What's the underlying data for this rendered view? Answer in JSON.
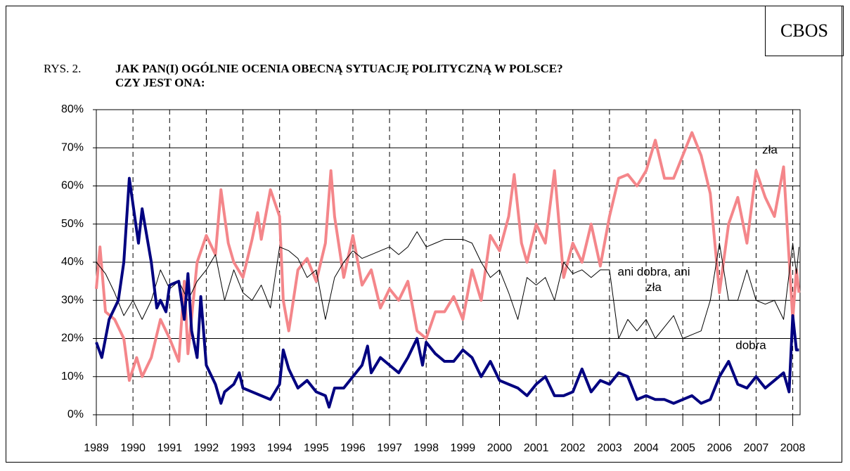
{
  "chart_data": {
    "type": "line",
    "source": "CBOS",
    "label": "RYS. 2.",
    "title": [
      "JAK PAN(I) OGÓLNIE OCENIA OBECNĄ SYTUACJĘ POLITYCZNĄ W POLSCE?",
      "CZY JEST ONA:"
    ],
    "xlim": [
      1989,
      2008.2
    ],
    "xticks": [
      1989,
      1990,
      1991,
      1992,
      1993,
      1994,
      1995,
      1996,
      1997,
      1998,
      1999,
      2000,
      2001,
      2002,
      2003,
      2004,
      2005,
      2006,
      2007,
      2008
    ],
    "ylim": [
      0,
      80
    ],
    "yticks": [
      {
        "value": 0,
        "label": "0%"
      },
      {
        "value": 10,
        "label": "10%"
      },
      {
        "value": 20,
        "label": "20%"
      },
      {
        "value": 30,
        "label": "30%"
      },
      {
        "value": 40,
        "label": "40%"
      },
      {
        "value": 50,
        "label": "50%"
      },
      {
        "value": 60,
        "label": "60%"
      },
      {
        "value": 70,
        "label": "70%"
      },
      {
        "value": 80,
        "label": "80%"
      }
    ],
    "grid": true,
    "series": [
      {
        "name": "zła",
        "color": "#f4868a",
        "width": 4,
        "x": [
          1989,
          1989.1,
          1989.25,
          1989.5,
          1989.75,
          1989.9,
          1990.1,
          1990.25,
          1990.5,
          1990.75,
          1991,
          1991.25,
          1991.4,
          1991.5,
          1991.75,
          1992,
          1992.25,
          1992.4,
          1992.6,
          1992.75,
          1993,
          1993.25,
          1993.4,
          1993.5,
          1993.75,
          1994,
          1994.1,
          1994.25,
          1994.5,
          1994.75,
          1995,
          1995.25,
          1995.4,
          1995.5,
          1995.75,
          1996,
          1996.25,
          1996.5,
          1996.75,
          1997,
          1997.25,
          1997.5,
          1997.75,
          1998,
          1998.25,
          1998.5,
          1998.75,
          1999,
          1999.25,
          1999.5,
          1999.75,
          2000,
          2000.25,
          2000.4,
          2000.6,
          2000.75,
          2001,
          2001.25,
          2001.5,
          2001.75,
          2002,
          2002.25,
          2002.5,
          2002.75,
          2003,
          2003.25,
          2003.5,
          2003.75,
          2004,
          2004.25,
          2004.5,
          2004.75,
          2005,
          2005.25,
          2005.5,
          2005.75,
          2006,
          2006.25,
          2006.5,
          2006.75,
          2007,
          2007.25,
          2007.5,
          2007.75,
          2008,
          2008.1,
          2008.17
        ],
        "values": [
          33,
          44,
          27,
          25,
          20,
          9,
          15,
          10,
          15,
          25,
          20,
          14,
          35,
          16,
          40,
          47,
          42,
          59,
          45,
          40,
          36,
          46,
          53,
          46,
          59,
          52,
          30,
          22,
          38,
          41,
          35,
          45,
          64,
          52,
          36,
          47,
          34,
          38,
          28,
          33,
          30,
          35,
          22,
          20,
          27,
          27,
          31,
          25,
          38,
          30,
          47,
          43,
          52,
          63,
          45,
          40,
          50,
          45,
          64,
          36,
          45,
          40,
          50,
          39,
          52,
          62,
          63,
          60,
          64,
          72,
          62,
          62,
          68,
          74,
          68,
          58,
          32,
          50,
          57,
          45,
          64,
          57,
          52,
          65,
          25,
          38,
          32
        ]
      },
      {
        "name": "ani dobra, ani zła",
        "color": "#000000",
        "width": 1,
        "x": [
          1989,
          1989.25,
          1989.5,
          1989.75,
          1990,
          1990.25,
          1990.5,
          1990.75,
          1991,
          1991.25,
          1991.5,
          1991.75,
          1992,
          1992.25,
          1992.5,
          1992.75,
          1993,
          1993.25,
          1993.5,
          1993.75,
          1994,
          1994.25,
          1994.5,
          1994.75,
          1995,
          1995.25,
          1995.5,
          1995.75,
          1996,
          1996.25,
          1996.5,
          1996.75,
          1997,
          1997.25,
          1997.5,
          1997.75,
          1998,
          1998.25,
          1998.5,
          1998.75,
          1999,
          1999.25,
          1999.5,
          1999.75,
          2000,
          2000.25,
          2000.5,
          2000.75,
          2001,
          2001.25,
          2001.5,
          2001.75,
          2002,
          2002.25,
          2002.5,
          2002.75,
          2003,
          2003.25,
          2003.5,
          2003.75,
          2004,
          2004.25,
          2004.5,
          2004.75,
          2005,
          2005.25,
          2005.5,
          2005.75,
          2006,
          2006.25,
          2006.5,
          2006.75,
          2007,
          2007.25,
          2007.5,
          2007.75,
          2008,
          2008.1,
          2008.17
        ],
        "values": [
          40,
          37,
          32,
          26,
          30,
          25,
          30,
          38,
          33,
          35,
          30,
          35,
          38,
          42,
          30,
          38,
          32,
          30,
          34,
          28,
          44,
          43,
          41,
          36,
          38,
          25,
          36,
          40,
          43,
          41,
          42,
          43,
          44,
          42,
          44,
          48,
          44,
          45,
          46,
          46,
          46,
          45,
          40,
          36,
          38,
          32,
          25,
          36,
          34,
          36,
          30,
          40,
          37,
          38,
          36,
          38,
          38,
          20,
          25,
          22,
          25,
          20,
          23,
          26,
          20,
          21,
          22,
          30,
          45,
          30,
          30,
          38,
          30,
          29,
          30,
          25,
          45,
          37,
          44
        ]
      },
      {
        "name": "dobra",
        "color": "#000080",
        "width": 4,
        "x": [
          1989,
          1989.15,
          1989.35,
          1989.6,
          1989.75,
          1989.9,
          1990.15,
          1990.25,
          1990.5,
          1990.65,
          1990.75,
          1990.9,
          1991,
          1991.25,
          1991.4,
          1991.5,
          1991.6,
          1991.75,
          1991.85,
          1992,
          1992.25,
          1992.4,
          1992.5,
          1992.75,
          1992.9,
          1993,
          1993.25,
          1993.5,
          1993.75,
          1994,
          1994.1,
          1994.25,
          1994.5,
          1994.75,
          1995,
          1995.25,
          1995.35,
          1995.5,
          1995.75,
          1996,
          1996.25,
          1996.4,
          1996.5,
          1996.75,
          1997,
          1997.25,
          1997.5,
          1997.75,
          1997.9,
          1998,
          1998.25,
          1998.5,
          1998.75,
          1999,
          1999.25,
          1999.5,
          1999.75,
          2000,
          2000.25,
          2000.5,
          2000.75,
          2001,
          2001.25,
          2001.5,
          2001.75,
          2002,
          2002.25,
          2002.5,
          2002.75,
          2003,
          2003.25,
          2003.5,
          2003.75,
          2004,
          2004.25,
          2004.5,
          2004.75,
          2005,
          2005.25,
          2005.5,
          2005.75,
          2006,
          2006.25,
          2006.5,
          2006.75,
          2007,
          2007.25,
          2007.5,
          2007.75,
          2007.9,
          2008,
          2008.1,
          2008.17
        ],
        "values": [
          19,
          15,
          25,
          30,
          40,
          62,
          45,
          54,
          40,
          28,
          30,
          27,
          34,
          35,
          25,
          37,
          22,
          15,
          31,
          13,
          8,
          3,
          6,
          8,
          11,
          7,
          6,
          5,
          4,
          8,
          17,
          12,
          7,
          9,
          6,
          5,
          2,
          7,
          7,
          10,
          13,
          18,
          11,
          15,
          13,
          11,
          15,
          20,
          13,
          19,
          16,
          14,
          14,
          17,
          15,
          10,
          14,
          9,
          8,
          7,
          5,
          8,
          10,
          5,
          5,
          6,
          12,
          6,
          9,
          8,
          11,
          10,
          4,
          5,
          4,
          4,
          3,
          4,
          5,
          3,
          4,
          10,
          14,
          8,
          7,
          10,
          7,
          9,
          11,
          6,
          26,
          17,
          17
        ]
      }
    ]
  }
}
